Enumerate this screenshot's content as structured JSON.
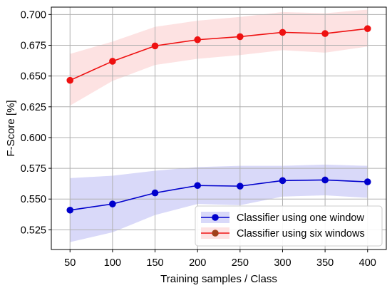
{
  "chart_data": {
    "type": "line",
    "xlabel": "Training samples / Class",
    "ylabel": "F-Score [%]",
    "xlim": [
      28,
      422
    ],
    "ylim": [
      0.509,
      0.706
    ],
    "x_ticks": [
      50,
      100,
      150,
      200,
      250,
      300,
      350,
      400
    ],
    "y_ticks": [
      0.525,
      0.55,
      0.575,
      0.6,
      0.625,
      0.65,
      0.675,
      0.7
    ],
    "y_tick_labels": [
      "0.525",
      "0.550",
      "0.575",
      "0.600",
      "0.625",
      "0.650",
      "0.675",
      "0.700"
    ],
    "grid": true,
    "legend_position": "lower-right",
    "x": [
      50,
      100,
      150,
      200,
      250,
      300,
      350,
      400
    ],
    "series": [
      {
        "name": "Classifier using one window",
        "color": "#0000cc",
        "band_color": "#d9d9f9",
        "values": [
          0.541,
          0.546,
          0.555,
          0.561,
          0.5605,
          0.565,
          0.5655,
          0.564
        ],
        "upper": [
          0.567,
          0.569,
          0.573,
          0.576,
          0.577,
          0.577,
          0.578,
          0.577
        ],
        "lower": [
          0.515,
          0.523,
          0.537,
          0.546,
          0.545,
          0.552,
          0.553,
          0.551
        ]
      },
      {
        "name": "Classifier using six windows",
        "color": "#ee1111",
        "marker_color": "#a0411a",
        "band_color": "#fde2e2",
        "values": [
          0.6465,
          0.662,
          0.6745,
          0.6795,
          0.682,
          0.6855,
          0.6845,
          0.6885
        ],
        "upper": [
          0.668,
          0.678,
          0.69,
          0.695,
          0.698,
          0.702,
          0.701,
          0.704
        ],
        "lower": [
          0.626,
          0.646,
          0.659,
          0.664,
          0.667,
          0.671,
          0.669,
          0.674
        ]
      }
    ]
  }
}
